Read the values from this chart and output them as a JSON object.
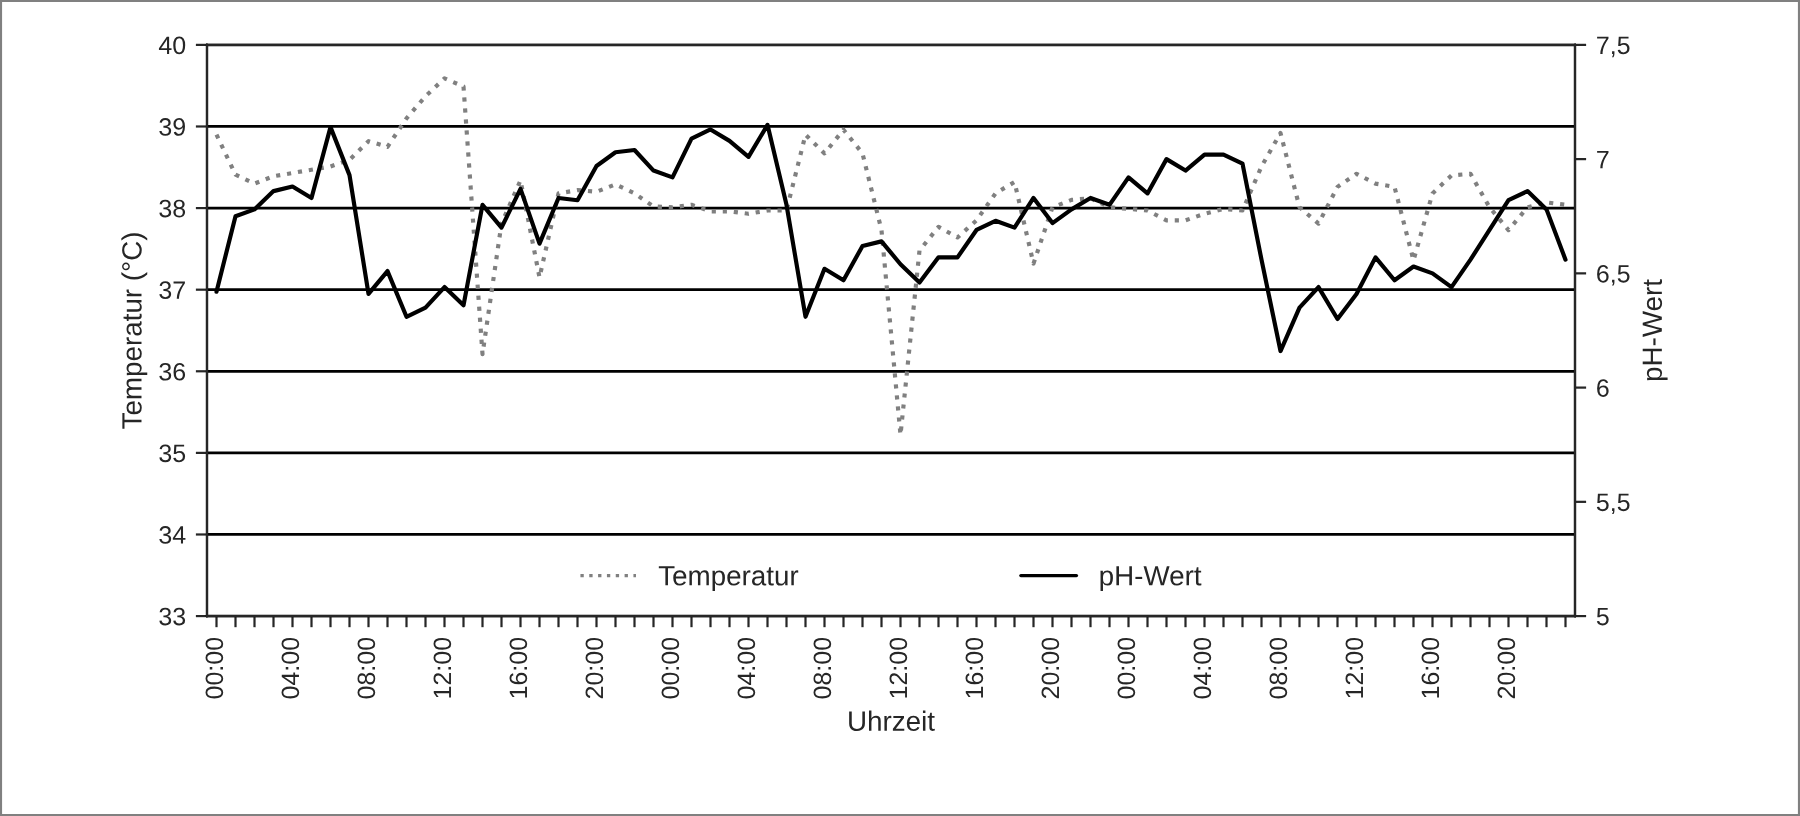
{
  "chart_data": {
    "type": "line",
    "xlabel": "Uhrzeit",
    "ylabel": "Temperatur (°C)",
    "y2label": "pH-Wert",
    "categories": [
      "00:00",
      null,
      null,
      null,
      "04:00",
      null,
      null,
      null,
      "08:00",
      null,
      null,
      null,
      "12:00",
      null,
      null,
      null,
      "16:00",
      null,
      null,
      null,
      "20:00",
      null,
      null,
      null,
      "00:00",
      null,
      null,
      null,
      "04:00",
      null,
      null,
      null,
      "08:00",
      null,
      null,
      null,
      "12:00",
      null,
      null,
      null,
      "16:00",
      null,
      null,
      null,
      "20:00",
      null,
      null,
      null,
      "00:00",
      null,
      null,
      null,
      "04:00",
      null,
      null,
      null,
      "08:00",
      null,
      null,
      null,
      "12:00",
      null,
      null,
      null,
      "16:00",
      null,
      null,
      null,
      "20:00",
      null,
      null,
      null
    ],
    "ylim": [
      33,
      40
    ],
    "yticks": [
      33,
      34,
      35,
      36,
      37,
      38,
      39,
      40
    ],
    "y2lim": [
      5,
      7.5
    ],
    "y2ticks": [
      5,
      {
        "value": 5.5,
        "label": "5,5"
      },
      6,
      {
        "value": 6.5,
        "label": "6,5"
      },
      7,
      {
        "value": 7.5,
        "label": "7,5"
      }
    ],
    "grid": "y",
    "legend": "bottom",
    "marker": "none",
    "series": [
      {
        "name": "Temperatur",
        "color": "#808080",
        "line_style": "dotted",
        "values": [
          38.9,
          38.41,
          38.3,
          38.39,
          38.43,
          38.47,
          38.51,
          38.59,
          38.82,
          38.75,
          39.1,
          39.37,
          39.59,
          39.49,
          36.21,
          37.81,
          38.34,
          37.15,
          38.18,
          38.22,
          38.2,
          38.29,
          38.18,
          38.02,
          38.01,
          38.04,
          37.96,
          37.96,
          37.93,
          37.97,
          37.97,
          38.9,
          38.67,
          38.96,
          38.67,
          37.73,
          35.22,
          37.48,
          37.77,
          37.64,
          37.85,
          38.18,
          38.32,
          37.32,
          38.01,
          38.1,
          38.12,
          38.01,
          37.99,
          37.97,
          37.85,
          37.85,
          37.93,
          37.99,
          37.97,
          38.51,
          38.92,
          38.01,
          37.81,
          38.26,
          38.42,
          38.3,
          38.26,
          37.36,
          38.18,
          38.4,
          38.42,
          38.01,
          37.73,
          38.01,
          38.07,
          38.04
        ]
      },
      {
        "name": "pH-Wert",
        "color": "#000000",
        "line_style": "solid",
        "axis": "y2",
        "values": [
          6.42,
          6.75,
          6.78,
          6.86,
          6.88,
          6.83,
          7.14,
          6.93,
          6.41,
          6.51,
          6.31,
          6.35,
          6.44,
          6.36,
          6.8,
          6.7,
          6.87,
          6.63,
          6.83,
          6.82,
          6.97,
          7.03,
          7.04,
          6.95,
          6.92,
          7.09,
          7.13,
          7.08,
          7.01,
          7.15,
          6.8,
          6.31,
          6.52,
          6.47,
          6.62,
          6.64,
          6.54,
          6.46,
          6.57,
          6.57,
          6.69,
          6.73,
          6.7,
          6.83,
          6.72,
          6.78,
          6.83,
          6.8,
          6.92,
          6.85,
          7.0,
          6.95,
          7.02,
          7.02,
          6.98,
          6.56,
          6.16,
          6.35,
          6.44,
          6.3,
          6.41,
          6.57,
          6.47,
          6.53,
          6.5,
          6.44,
          6.56,
          6.69,
          6.82,
          6.86,
          6.78,
          6.56
        ]
      }
    ]
  }
}
